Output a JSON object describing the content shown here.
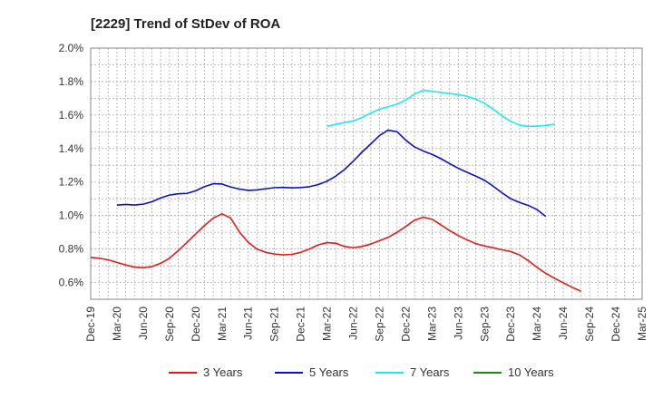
{
  "chart_data": {
    "type": "line",
    "title": "[2229]  Trend of StDev of ROA",
    "xlabel": "",
    "ylabel": "",
    "x_tick_labels": [
      "Dec-19",
      "Mar-20",
      "Jun-20",
      "Sep-20",
      "Dec-20",
      "Mar-21",
      "Jun-21",
      "Sep-21",
      "Dec-21",
      "Mar-22",
      "Jun-22",
      "Sep-22",
      "Dec-22",
      "Mar-23",
      "Jun-23",
      "Sep-23",
      "Dec-23",
      "Mar-24",
      "Jun-24",
      "Sep-24",
      "Dec-24",
      "Mar-25"
    ],
    "y_tick_labels": [
      "0.6%",
      "0.8%",
      "1.0%",
      "1.2%",
      "1.4%",
      "1.6%",
      "1.8%",
      "2.0%"
    ],
    "y_ticks": [
      0.6,
      0.8,
      1.0,
      1.2,
      1.4,
      1.6,
      1.8,
      2.0
    ],
    "ylim": [
      0.5,
      2.0
    ],
    "x_unit": "quarter index from Dec-19",
    "grid": true,
    "legend_position": "bottom",
    "series": [
      {
        "name": "3 Years",
        "color": "#e31a1c",
        "points": [
          [
            0,
            0.75
          ],
          [
            0.33,
            0.745
          ],
          [
            0.67,
            0.735
          ],
          [
            1,
            0.72
          ],
          [
            1.33,
            0.705
          ],
          [
            1.67,
            0.692
          ],
          [
            2,
            0.688
          ],
          [
            2.33,
            0.695
          ],
          [
            2.67,
            0.715
          ],
          [
            3,
            0.745
          ],
          [
            3.33,
            0.79
          ],
          [
            3.67,
            0.84
          ],
          [
            4,
            0.89
          ],
          [
            4.33,
            0.94
          ],
          [
            4.67,
            0.985
          ],
          [
            5,
            1.01
          ],
          [
            5.33,
            0.985
          ],
          [
            5.67,
            0.9
          ],
          [
            6,
            0.84
          ],
          [
            6.33,
            0.8
          ],
          [
            6.67,
            0.78
          ],
          [
            7,
            0.77
          ],
          [
            7.33,
            0.765
          ],
          [
            7.67,
            0.768
          ],
          [
            8,
            0.78
          ],
          [
            8.33,
            0.8
          ],
          [
            8.67,
            0.825
          ],
          [
            9,
            0.838
          ],
          [
            9.33,
            0.835
          ],
          [
            9.67,
            0.815
          ],
          [
            10,
            0.808
          ],
          [
            10.33,
            0.815
          ],
          [
            10.67,
            0.83
          ],
          [
            11,
            0.85
          ],
          [
            11.33,
            0.87
          ],
          [
            11.67,
            0.9
          ],
          [
            12,
            0.935
          ],
          [
            12.33,
            0.972
          ],
          [
            12.67,
            0.99
          ],
          [
            13,
            0.978
          ],
          [
            13.33,
            0.945
          ],
          [
            13.67,
            0.91
          ],
          [
            14,
            0.88
          ],
          [
            14.33,
            0.855
          ],
          [
            14.67,
            0.832
          ],
          [
            15,
            0.818
          ],
          [
            15.33,
            0.808
          ],
          [
            15.67,
            0.795
          ],
          [
            16,
            0.785
          ],
          [
            16.33,
            0.765
          ],
          [
            16.67,
            0.73
          ],
          [
            17,
            0.69
          ],
          [
            17.33,
            0.655
          ],
          [
            17.67,
            0.625
          ],
          [
            18,
            0.598
          ],
          [
            18.33,
            0.572
          ],
          [
            18.67,
            0.548
          ]
        ]
      },
      {
        "name": "5 Years",
        "color": "#0a12c8",
        "points": [
          [
            1,
            1.062
          ],
          [
            1.33,
            1.066
          ],
          [
            1.67,
            1.063
          ],
          [
            2,
            1.068
          ],
          [
            2.33,
            1.082
          ],
          [
            2.67,
            1.105
          ],
          [
            3,
            1.122
          ],
          [
            3.33,
            1.13
          ],
          [
            3.67,
            1.132
          ],
          [
            4,
            1.148
          ],
          [
            4.33,
            1.172
          ],
          [
            4.67,
            1.19
          ],
          [
            5,
            1.188
          ],
          [
            5.33,
            1.17
          ],
          [
            5.67,
            1.158
          ],
          [
            6,
            1.15
          ],
          [
            6.33,
            1.153
          ],
          [
            6.67,
            1.16
          ],
          [
            7,
            1.166
          ],
          [
            7.33,
            1.168
          ],
          [
            7.67,
            1.165
          ],
          [
            8,
            1.167
          ],
          [
            8.33,
            1.172
          ],
          [
            8.67,
            1.185
          ],
          [
            9,
            1.205
          ],
          [
            9.33,
            1.235
          ],
          [
            9.67,
            1.275
          ],
          [
            10,
            1.325
          ],
          [
            10.33,
            1.378
          ],
          [
            10.67,
            1.428
          ],
          [
            11,
            1.478
          ],
          [
            11.33,
            1.51
          ],
          [
            11.67,
            1.5
          ],
          [
            12,
            1.45
          ],
          [
            12.33,
            1.41
          ],
          [
            12.67,
            1.385
          ],
          [
            13,
            1.365
          ],
          [
            13.33,
            1.34
          ],
          [
            13.67,
            1.31
          ],
          [
            14,
            1.282
          ],
          [
            14.33,
            1.258
          ],
          [
            14.67,
            1.235
          ],
          [
            15,
            1.21
          ],
          [
            15.33,
            1.175
          ],
          [
            15.67,
            1.135
          ],
          [
            16,
            1.1
          ],
          [
            16.33,
            1.078
          ],
          [
            16.67,
            1.06
          ],
          [
            17,
            1.035
          ],
          [
            17.33,
            0.995
          ]
        ]
      },
      {
        "name": "7 Years",
        "color": "#1fe8f0",
        "points": [
          [
            9,
            1.532
          ],
          [
            9.33,
            1.545
          ],
          [
            9.67,
            1.555
          ],
          [
            10,
            1.565
          ],
          [
            10.33,
            1.585
          ],
          [
            10.67,
            1.612
          ],
          [
            11,
            1.635
          ],
          [
            11.33,
            1.65
          ],
          [
            11.67,
            1.665
          ],
          [
            12,
            1.69
          ],
          [
            12.33,
            1.725
          ],
          [
            12.67,
            1.748
          ],
          [
            13,
            1.742
          ],
          [
            13.33,
            1.735
          ],
          [
            13.67,
            1.728
          ],
          [
            14,
            1.722
          ],
          [
            14.33,
            1.712
          ],
          [
            14.67,
            1.695
          ],
          [
            15,
            1.67
          ],
          [
            15.33,
            1.635
          ],
          [
            15.67,
            1.595
          ],
          [
            16,
            1.562
          ],
          [
            16.33,
            1.54
          ],
          [
            16.67,
            1.532
          ],
          [
            17,
            1.534
          ],
          [
            17.33,
            1.538
          ],
          [
            17.67,
            1.545
          ]
        ]
      },
      {
        "name": "10 Years",
        "color": "#1a8a1a",
        "points": []
      }
    ]
  }
}
